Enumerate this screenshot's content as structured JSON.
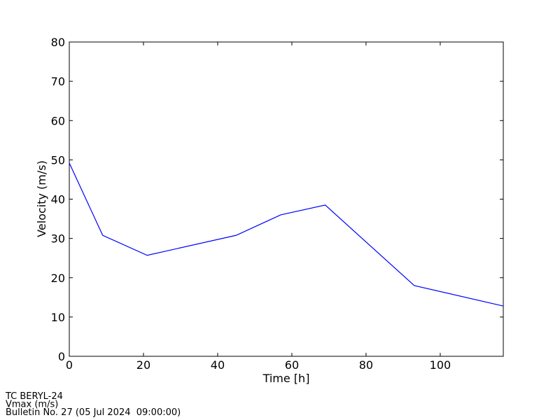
{
  "chart_data": {
    "type": "line",
    "x_label": "Time [h]",
    "y_label": "Velocity (m/s)",
    "x": [
      0,
      9,
      21,
      45,
      57,
      69,
      93,
      117
    ],
    "values": [
      49.2,
      30.8,
      25.7,
      30.8,
      36,
      38.5,
      18,
      12.8
    ],
    "color": "#0000ff",
    "xlim": [
      0,
      117
    ],
    "xticks": [
      0,
      20,
      40,
      60,
      80,
      100
    ],
    "ylim": [
      0,
      80
    ],
    "yticks": [
      0,
      10,
      20,
      30,
      40,
      50,
      60,
      70,
      80
    ],
    "annotations": [
      "TC BERYL-24",
      "Vmax (m/s)",
      "Bulletin No. 27 (05 Jul 2024  09:00:00)"
    ]
  }
}
